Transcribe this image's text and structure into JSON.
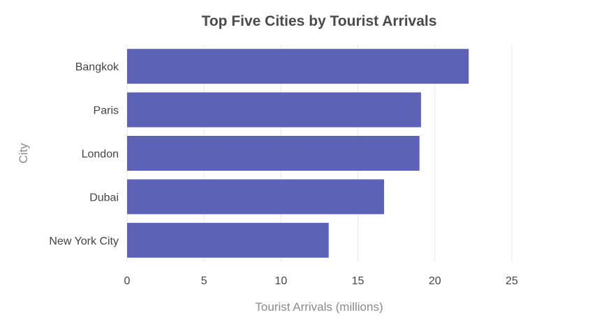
{
  "chart_data": {
    "type": "bar",
    "orientation": "horizontal",
    "title": "Top Five Cities by Tourist Arrivals",
    "xlabel": "Tourist Arrivals (millions)",
    "ylabel": "City",
    "categories": [
      "Bangkok",
      "Paris",
      "London",
      "Dubai",
      "New York City"
    ],
    "values": [
      22.2,
      19.1,
      19.0,
      16.7,
      13.1
    ],
    "xlim": [
      0,
      27
    ],
    "xticks": [
      0,
      5,
      10,
      15,
      20,
      25
    ],
    "grid": "vertical",
    "bar_color": "#5c62b5"
  }
}
